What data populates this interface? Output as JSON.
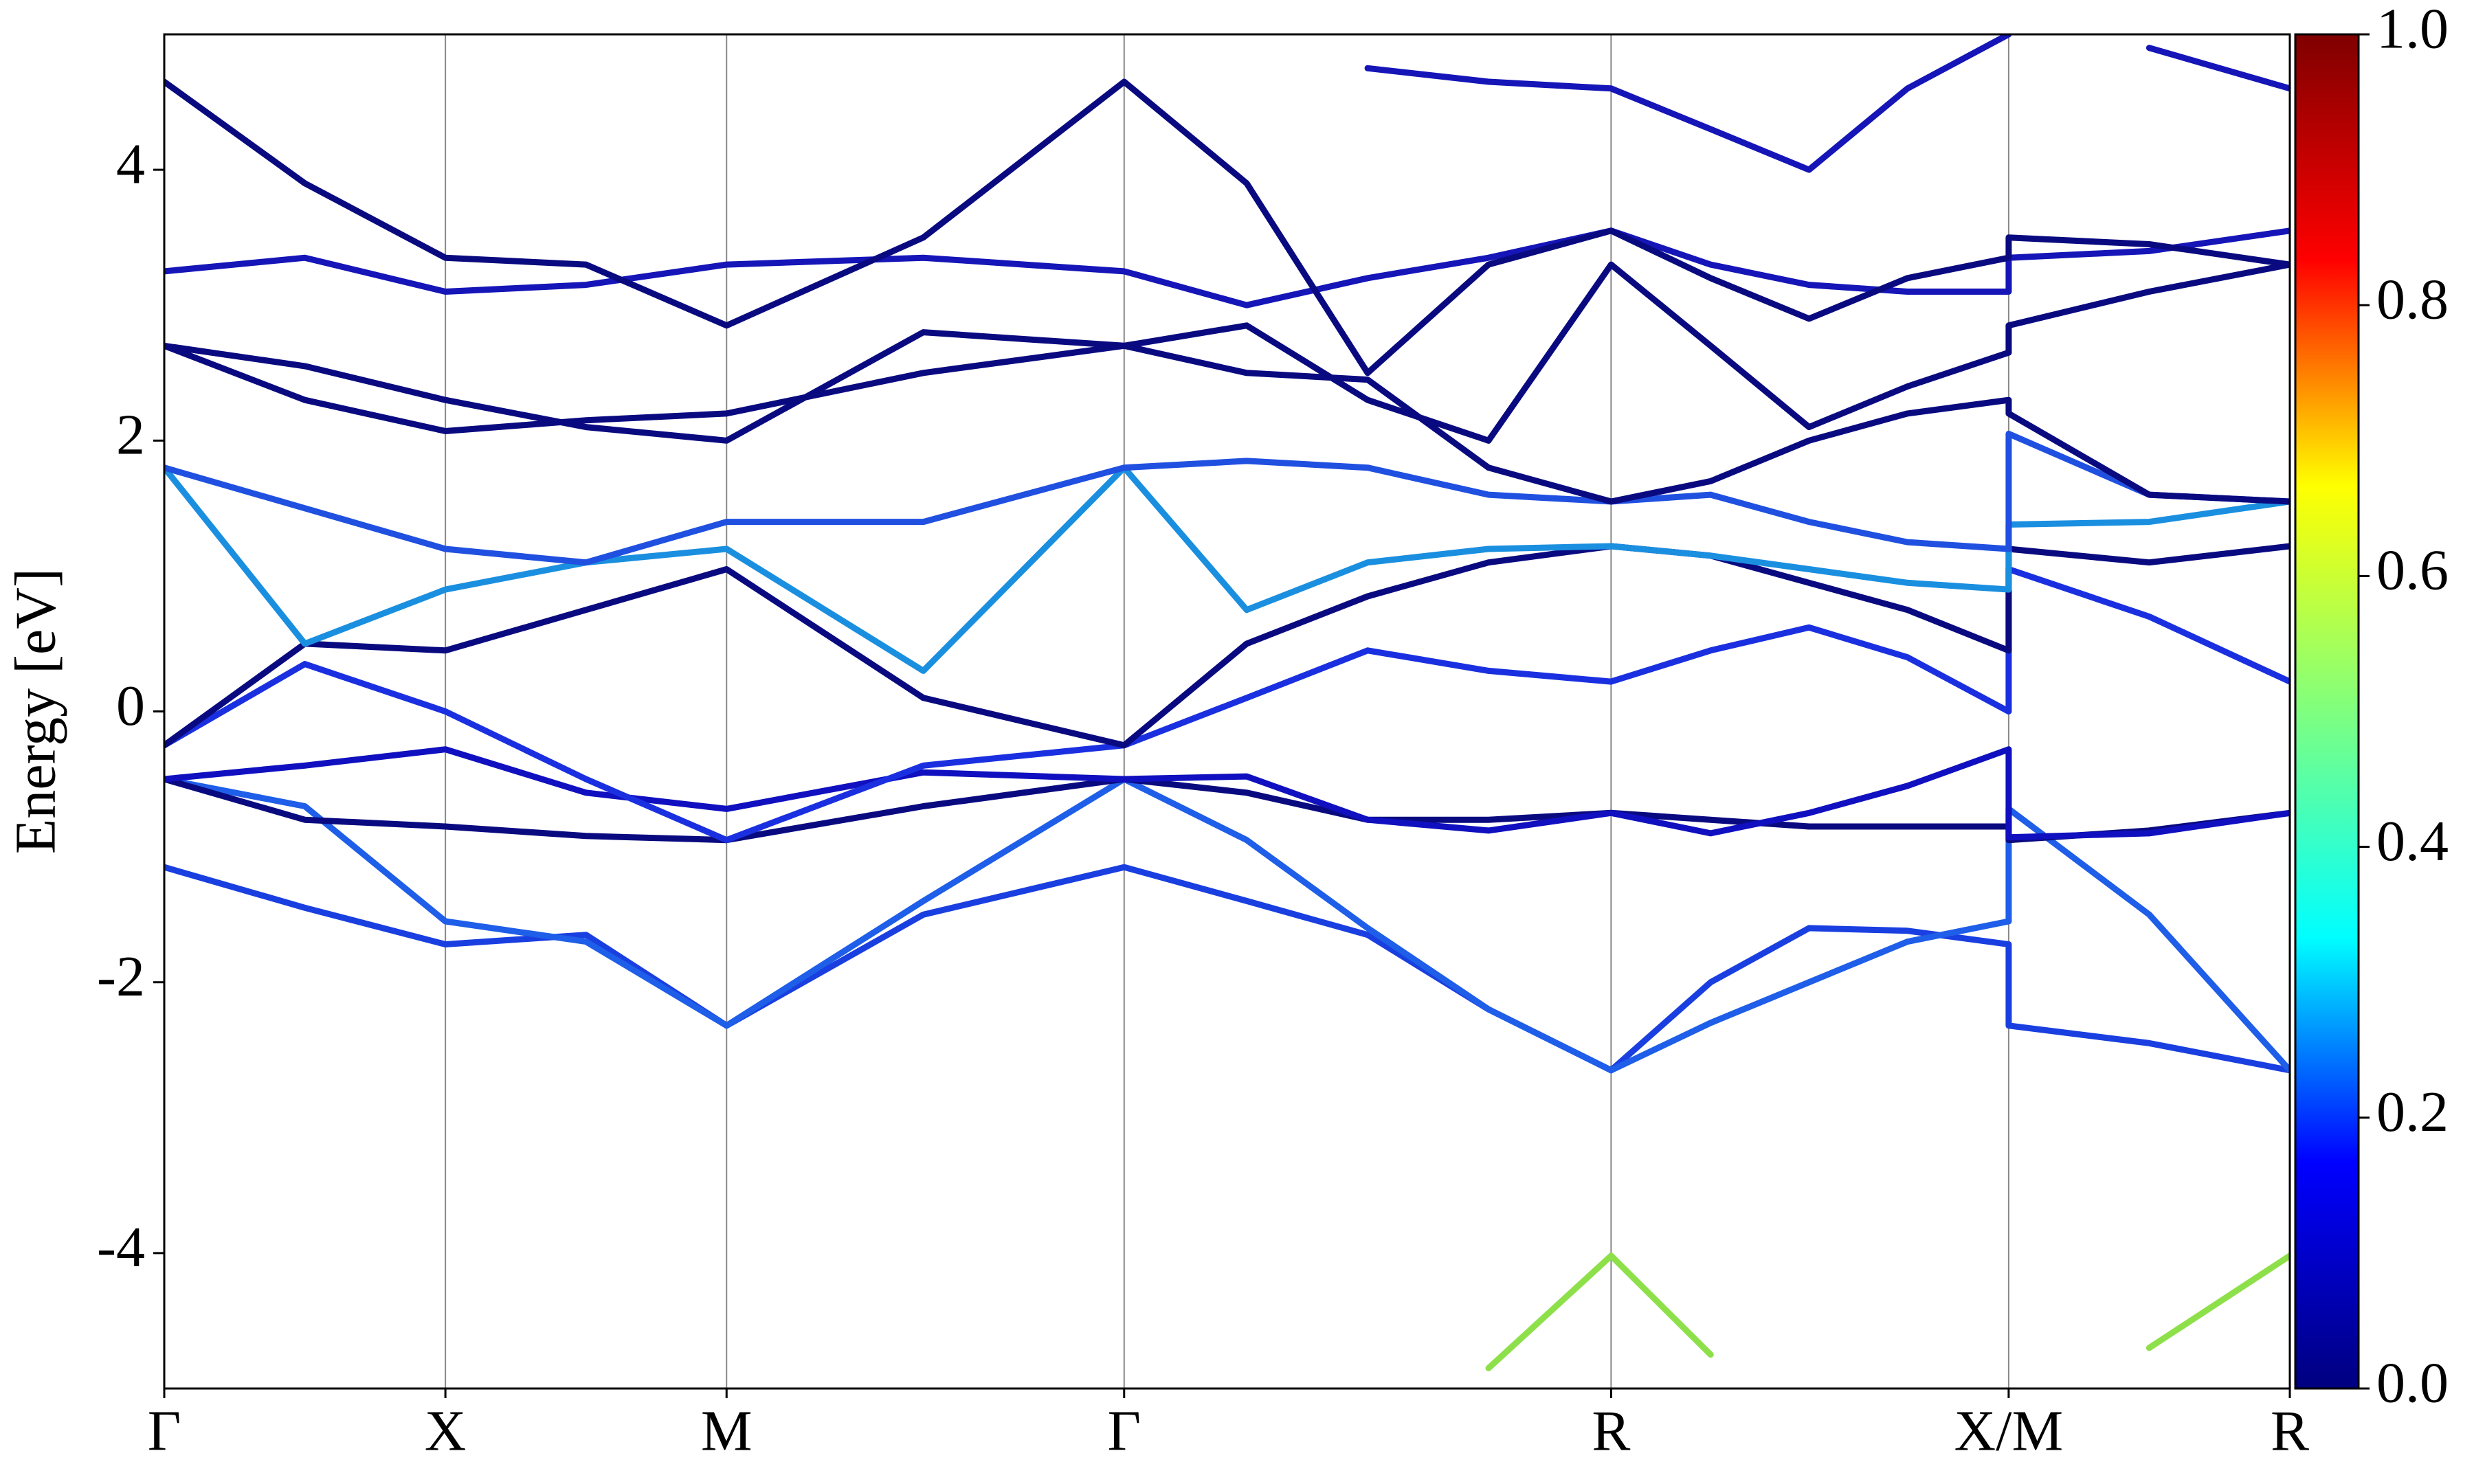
{
  "chart_data": {
    "type": "line",
    "ylabel": "Energy [eV]",
    "x": [
      0,
      0.5,
      1,
      1.5,
      2,
      2.7,
      3.414,
      3.85,
      4.28,
      4.71,
      5.146,
      5.5,
      5.85,
      6.2,
      6.56,
      6.56,
      7.06,
      7.56
    ],
    "xlim": [
      0,
      7.56
    ],
    "xticks": [
      {
        "value": 0,
        "label": "Γ"
      },
      {
        "value": 1,
        "label": "X"
      },
      {
        "value": 2,
        "label": "M"
      },
      {
        "value": 3.414,
        "label": "Γ"
      },
      {
        "value": 5.146,
        "label": "R"
      },
      {
        "value": 6.56,
        "label": "X/M"
      },
      {
        "value": 7.56,
        "label": "R"
      }
    ],
    "ylim": [
      -5,
      5
    ],
    "yticks": [
      -4,
      -2,
      0,
      2,
      4
    ],
    "grid": true,
    "series": [
      {
        "color": "#8ee04a",
        "values": [
          null,
          null,
          null,
          null,
          null,
          null,
          null,
          null,
          null,
          -4.85,
          -4.02,
          -4.75,
          null,
          null,
          null,
          null,
          -4.7,
          -4.02
        ]
      },
      {
        "color": "#1a3fe0",
        "values": [
          -1.15,
          -1.45,
          -1.72,
          -1.65,
          -2.32,
          -1.5,
          -1.15,
          -1.4,
          -1.65,
          -2.2,
          -2.65,
          -2.0,
          -1.6,
          -1.62,
          -1.72,
          -2.32,
          -2.45,
          -2.65
        ]
      },
      {
        "color": "#1e5ee8",
        "values": [
          -0.5,
          -0.7,
          -1.55,
          -1.7,
          -2.32,
          -1.4,
          -0.5,
          -0.95,
          -1.6,
          -2.2,
          -2.65,
          -2.3,
          -2.0,
          -1.7,
          -1.55,
          -0.72,
          -1.5,
          -2.65
        ]
      },
      {
        "color": "#0a0a80",
        "values": [
          -0.5,
          -0.8,
          -0.85,
          -0.92,
          -0.95,
          -0.7,
          -0.5,
          -0.6,
          -0.8,
          -0.8,
          -0.75,
          -0.8,
          -0.85,
          -0.85,
          -0.85,
          -0.95,
          -0.88,
          -0.75
        ]
      },
      {
        "color": "#1010c0",
        "values": [
          -0.5,
          -0.4,
          -0.28,
          -0.6,
          -0.72,
          -0.45,
          -0.5,
          -0.48,
          -0.8,
          -0.88,
          -0.75,
          -0.9,
          -0.75,
          -0.55,
          -0.28,
          -0.93,
          -0.9,
          -0.75
        ]
      },
      {
        "color": "#1a30e0",
        "values": [
          -0.25,
          0.35,
          0,
          -0.5,
          -0.95,
          -0.4,
          -0.25,
          0.1,
          0.45,
          0.3,
          0.22,
          0.45,
          0.62,
          0.4,
          0,
          1.05,
          0.7,
          0.22
        ]
      },
      {
        "color": "#0a0a80",
        "values": [
          -0.25,
          0.5,
          0.45,
          0.75,
          1.05,
          0.1,
          -0.25,
          0.5,
          0.85,
          1.1,
          1.22,
          1.15,
          0.95,
          0.75,
          0.45,
          1.2,
          1.1,
          1.22
        ]
      },
      {
        "color": "#1a8fe0",
        "values": [
          1.8,
          0.5,
          0.9,
          1.1,
          1.2,
          0.3,
          1.8,
          0.75,
          1.1,
          1.2,
          1.22,
          1.15,
          1.05,
          0.95,
          0.9,
          1.38,
          1.4,
          1.55
        ]
      },
      {
        "color": "#2050e0",
        "values": [
          1.8,
          1.5,
          1.2,
          1.1,
          1.4,
          1.4,
          1.8,
          1.85,
          1.8,
          1.6,
          1.55,
          1.6,
          1.4,
          1.25,
          1.2,
          2.05,
          1.6,
          1.55
        ]
      },
      {
        "color": "#0a0a80",
        "values": [
          2.7,
          2.3,
          2.07,
          2.15,
          2.2,
          2.5,
          2.7,
          2.5,
          2.45,
          1.8,
          1.55,
          1.7,
          2.0,
          2.2,
          2.3,
          2.2,
          1.6,
          1.55
        ]
      },
      {
        "color": "#0a0a80",
        "values": [
          2.7,
          2.55,
          2.3,
          2.1,
          2.0,
          2.8,
          2.7,
          2.85,
          2.3,
          2.0,
          3.3,
          2.7,
          2.1,
          2.4,
          2.65,
          2.85,
          3.1,
          3.3
        ]
      },
      {
        "color": "#1515b8",
        "values": [
          3.25,
          3.35,
          3.1,
          3.15,
          3.3,
          3.35,
          3.25,
          3.0,
          3.2,
          3.35,
          3.55,
          3.3,
          3.15,
          3.1,
          3.1,
          3.35,
          3.4,
          3.55
        ]
      },
      {
        "color": "#0a0a80",
        "values": [
          4.65,
          3.9,
          3.35,
          3.3,
          2.85,
          3.5,
          4.65,
          3.9,
          2.5,
          3.3,
          3.55,
          3.2,
          2.9,
          3.2,
          3.35,
          3.5,
          3.45,
          3.3
        ]
      },
      {
        "color": "#1515b8",
        "values": [
          null,
          null,
          null,
          null,
          null,
          null,
          null,
          null,
          4.75,
          4.65,
          4.6,
          4.3,
          4.0,
          4.6,
          5.0,
          null,
          4.9,
          4.6
        ]
      }
    ],
    "colorbar": {
      "colors": [
        "#00007f",
        "#0000ff",
        "#00ffff",
        "#7fff7f",
        "#ffff00",
        "#ff0000",
        "#7f0000"
      ],
      "lim": [
        0,
        1
      ],
      "ticks": [
        {
          "value": 0,
          "label": "0.0"
        },
        0.2,
        0.4,
        0.6,
        0.8,
        {
          "value": 1,
          "label": "1.0"
        }
      ]
    }
  }
}
